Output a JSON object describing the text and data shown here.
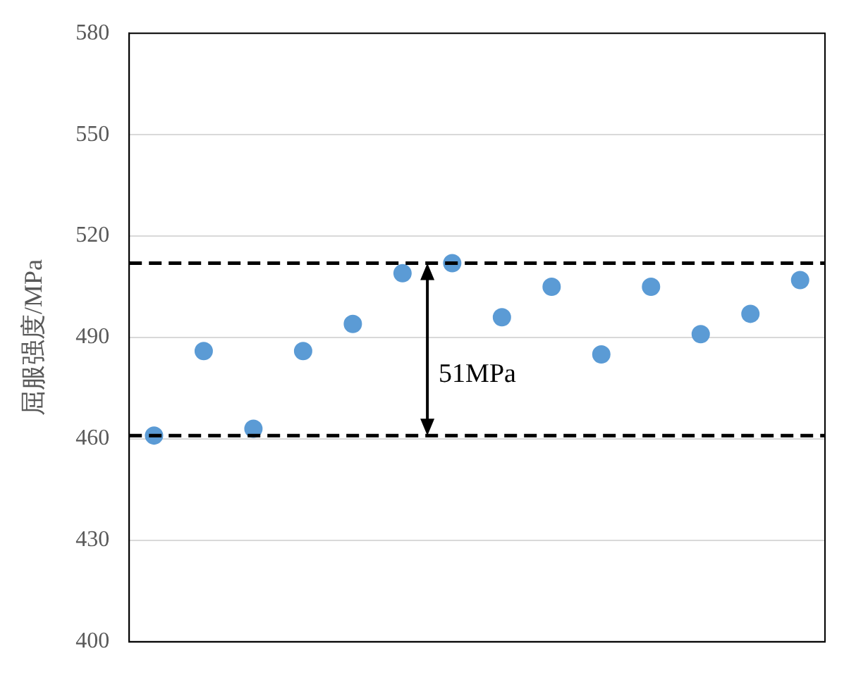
{
  "chart_data": {
    "type": "scatter",
    "ylabel": "屈服强度/MPa",
    "categories": [
      null,
      null,
      null,
      null,
      null,
      null,
      null,
      null,
      null,
      null,
      null,
      null,
      null,
      null
    ],
    "series": [
      {
        "color": "#5b9bd5",
        "values": [
          461,
          486,
          463,
          486,
          494,
          509,
          512,
          496,
          505,
          485,
          505,
          491,
          497,
          507
        ]
      }
    ],
    "ylim": [
      400,
      580
    ],
    "yticks": [
      400,
      430,
      460,
      490,
      520,
      550,
      580
    ],
    "tick_labels": "y",
    "grid": "y",
    "legend": false,
    "marker": "circle",
    "ref_lines": [
      {
        "axis": "y",
        "value": 512,
        "color": "#000000",
        "line_style": "dashed"
      },
      {
        "axis": "y",
        "value": 461,
        "color": "#000000",
        "line_style": "dashed"
      }
    ],
    "annotations": [
      "51MPa"
    ]
  }
}
